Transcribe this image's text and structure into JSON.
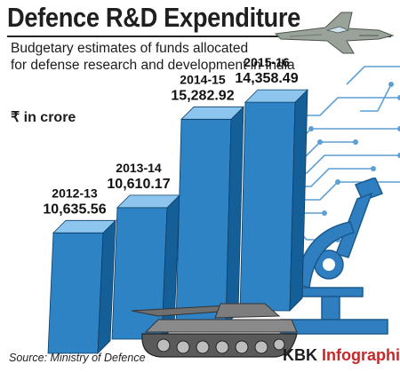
{
  "header": {
    "title": "Defence R&D Expenditure",
    "subtitle_line1": "Budgetary estimates of funds allocated",
    "subtitle_line2": "for defense research and development in India"
  },
  "unit_label": "₹ in crore",
  "footer": {
    "source": "Source: Ministry of Defence",
    "brand_prefix": "KBK ",
    "brand_suffix": "Infographics"
  },
  "colors": {
    "bar_front": "#2e83c5",
    "bar_side": "#155f98",
    "bar_top": "#8cc6ee",
    "circuit": "#5b9fd6",
    "brand_accent": "#c62828"
  },
  "icons": [
    "fighter-jet-icon",
    "battle-tank-icon",
    "microscope-icon",
    "circuit-lines-icon"
  ],
  "chart_data": {
    "type": "bar",
    "categories": [
      "2012-13",
      "2013-14",
      "2014-15",
      "2015-16"
    ],
    "values": [
      10635.56,
      10610.17,
      15282.92,
      14358.49
    ],
    "value_labels": [
      "10,635.56",
      "10,610.17",
      "15,282.92",
      "14,358.49"
    ],
    "title": "Defence R&D Expenditure",
    "subtitle": "Budgetary estimates of funds allocated for defense research and development in India",
    "ylabel": "₹ in crore",
    "ylim": [
      0,
      16000
    ],
    "style": "3d"
  }
}
